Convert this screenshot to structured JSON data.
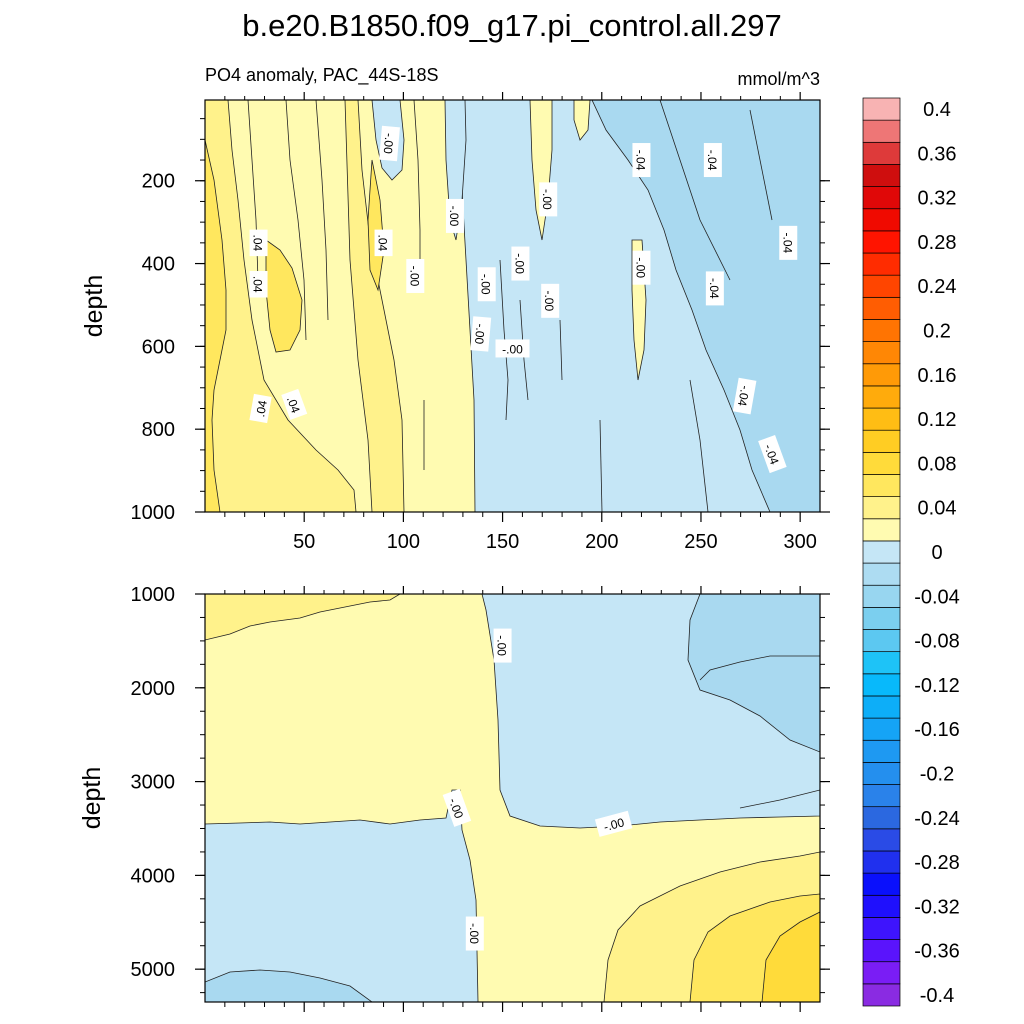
{
  "figure": {
    "title": "b.e20.B1850.f09_g17.pi_control.all.297",
    "subtitle_left": "PO4 anomaly, PAC_44S-18S",
    "subtitle_right": "mmol/m^3"
  },
  "colors": {
    "background": "#ffffff",
    "contour_line": "#222222",
    "label_box": "#ffffff",
    "fill_levels": [
      {
        "lo": -0.04,
        "hi": 0.0,
        "color": "#c5e6f6"
      },
      {
        "lo": -0.08,
        "hi": -0.04,
        "color": "#a9d9f0"
      },
      {
        "lo": 0.0,
        "hi": 0.02,
        "color": "#fffbb1"
      },
      {
        "lo": 0.02,
        "hi": 0.04,
        "color": "#fff28b"
      },
      {
        "lo": 0.04,
        "hi": 0.06,
        "color": "#ffe75e"
      },
      {
        "lo": 0.06,
        "hi": 0.08,
        "color": "#ffdb3a"
      }
    ]
  },
  "chart_data": [
    {
      "type": "contour",
      "panel": "upper",
      "xlabel": "",
      "ylabel": "depth",
      "xlim": [
        0,
        310
      ],
      "ylim": [
        1000,
        5
      ],
      "y_inverted": true,
      "x_ticks": [
        50,
        100,
        150,
        200,
        250,
        300
      ],
      "y_ticks": [
        200,
        400,
        600,
        800,
        1000
      ],
      "contour_labels": [
        {
          "text": ".04",
          "x": 27,
          "y": 450,
          "rot": 90
        },
        {
          "text": ".04",
          "x": 28,
          "y": 750,
          "rot": -80
        },
        {
          "text": ".04",
          "x": 45,
          "y": 740,
          "rot": 70
        },
        {
          "text": ".04",
          "x": 27,
          "y": 350,
          "rot": 90
        },
        {
          "text": ".04",
          "x": 90,
          "y": 350,
          "rot": 90
        },
        {
          "text": "-.00",
          "x": 93,
          "y": 110,
          "rot": 95
        },
        {
          "text": "-.00",
          "x": 106,
          "y": 430,
          "rot": 90
        },
        {
          "text": "-.00",
          "x": 126,
          "y": 285,
          "rot": 90
        },
        {
          "text": "-.00",
          "x": 139,
          "y": 570,
          "rot": 95
        },
        {
          "text": "-.00",
          "x": 142,
          "y": 450,
          "rot": 90
        },
        {
          "text": "-.00",
          "x": 159,
          "y": 400,
          "rot": 90
        },
        {
          "text": "-.00",
          "x": 155,
          "y": 605,
          "rot": 0
        },
        {
          "text": "-.00",
          "x": 173,
          "y": 245,
          "rot": 90
        },
        {
          "text": "-.00",
          "x": 174,
          "y": 490,
          "rot": 90
        },
        {
          "text": "-.00",
          "x": 220,
          "y": 410,
          "rot": 90
        },
        {
          "text": "-.04",
          "x": 220,
          "y": 150,
          "rot": 90
        },
        {
          "text": "-.04",
          "x": 256,
          "y": 150,
          "rot": 90
        },
        {
          "text": "-.04",
          "x": 294,
          "y": 350,
          "rot": 90
        },
        {
          "text": "-.04",
          "x": 257,
          "y": 460,
          "rot": 90
        },
        {
          "text": "-.04",
          "x": 272,
          "y": 720,
          "rot": 100
        },
        {
          "text": "-.04",
          "x": 286,
          "y": 860,
          "rot": 70
        }
      ]
    },
    {
      "type": "contour",
      "panel": "lower",
      "xlabel": "",
      "ylabel": "depth",
      "xlim": [
        0,
        310
      ],
      "ylim": [
        5350,
        1000
      ],
      "y_inverted": true,
      "x_ticks": [
        50,
        100,
        150,
        200,
        250,
        300
      ],
      "y_ticks": [
        1000,
        2000,
        3000,
        4000,
        5000
      ],
      "contour_labels": [
        {
          "text": "-.00",
          "x": 150,
          "y": 1550,
          "rot": 90
        },
        {
          "text": "-.00",
          "x": 127,
          "y": 3280,
          "rot": 70
        },
        {
          "text": "-.00",
          "x": 206,
          "y": 3450,
          "rot": -15
        },
        {
          "text": "-.00",
          "x": 136,
          "y": 4620,
          "rot": 90
        }
      ]
    },
    {
      "type": "colorbar",
      "levels": [
        -0.4,
        -0.38,
        -0.36,
        -0.34,
        -0.32,
        -0.3,
        -0.28,
        -0.26,
        -0.24,
        -0.22,
        -0.2,
        -0.18,
        -0.16,
        -0.14,
        -0.12,
        -0.1,
        -0.08,
        -0.06,
        -0.04,
        -0.02,
        0,
        0.02,
        0.04,
        0.06,
        0.08,
        0.1,
        0.12,
        0.14,
        0.16,
        0.18,
        0.2,
        0.22,
        0.24,
        0.26,
        0.28,
        0.3,
        0.32,
        0.34,
        0.36,
        0.38,
        0.4
      ],
      "colors": [
        "#8a2be2",
        "#7a1df5",
        "#5a14fc",
        "#3e14fd",
        "#1f10fd",
        "#0a10fc",
        "#2030ee",
        "#2a4be6",
        "#2b68e0",
        "#2a82ea",
        "#248fee",
        "#1e99f2",
        "#15a4f6",
        "#0daef8",
        "#08b9fb",
        "#1ec3f7",
        "#5cc8f1",
        "#7bcfef",
        "#98d6f0",
        "#addcf2",
        "#c5e6f6",
        "#fffbb1",
        "#fff28b",
        "#ffe75e",
        "#ffdb3a",
        "#ffcd23",
        "#ffbd14",
        "#ffab0c",
        "#ff9a07",
        "#ff8705",
        "#ff7402",
        "#ff5d02",
        "#ff4500",
        "#ff2c00",
        "#ff1400",
        "#f00a00",
        "#e00808",
        "#cf0e0e",
        "#de3a3a",
        "#ee7676",
        "#f8b3b3"
      ],
      "labels": [
        "-0.4",
        "-0.36",
        "-0.32",
        "-0.28",
        "-0.24",
        "-0.2",
        "-0.16",
        "-0.12",
        "-0.08",
        "-0.04",
        "0",
        "0.04",
        "0.08",
        "0.12",
        "0.16",
        "0.2",
        "0.24",
        "0.28",
        "0.32",
        "0.36",
        "0.4"
      ]
    }
  ]
}
